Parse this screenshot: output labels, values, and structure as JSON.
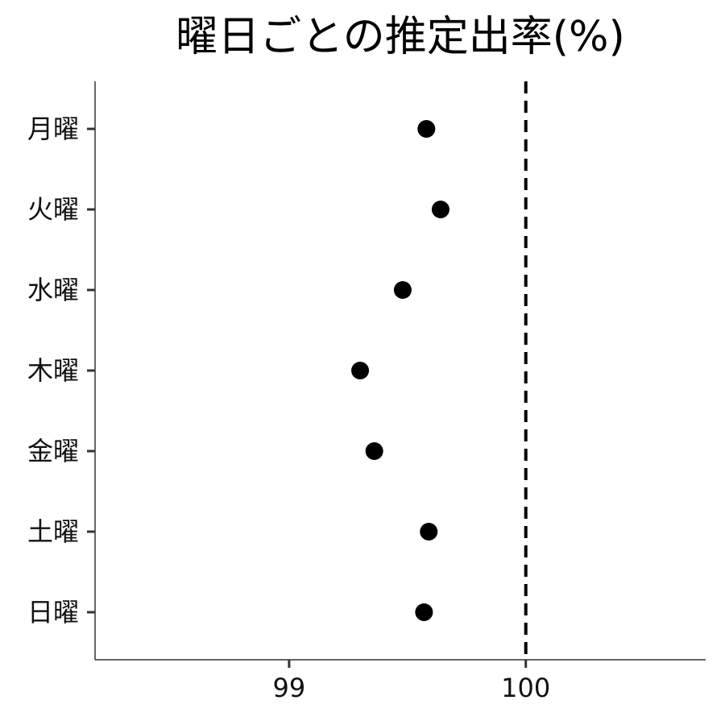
{
  "chart_data": {
    "type": "scatter",
    "title": "曜日ごとの推定出率(%)",
    "xlabel": "",
    "ylabel": "",
    "categories": [
      "月曜",
      "火曜",
      "水曜",
      "木曜",
      "金曜",
      "土曜",
      "日曜"
    ],
    "values": [
      99.58,
      99.64,
      99.48,
      99.3,
      99.36,
      99.59,
      99.57
    ],
    "xlim": [
      98.18,
      100.76
    ],
    "x_ticks": [
      99,
      100
    ],
    "x_tick_labels": [
      "99",
      "100"
    ],
    "reference_line": {
      "x": 100,
      "style": "dashed"
    },
    "grid": false,
    "legend": "none",
    "point_color": "#000000"
  }
}
